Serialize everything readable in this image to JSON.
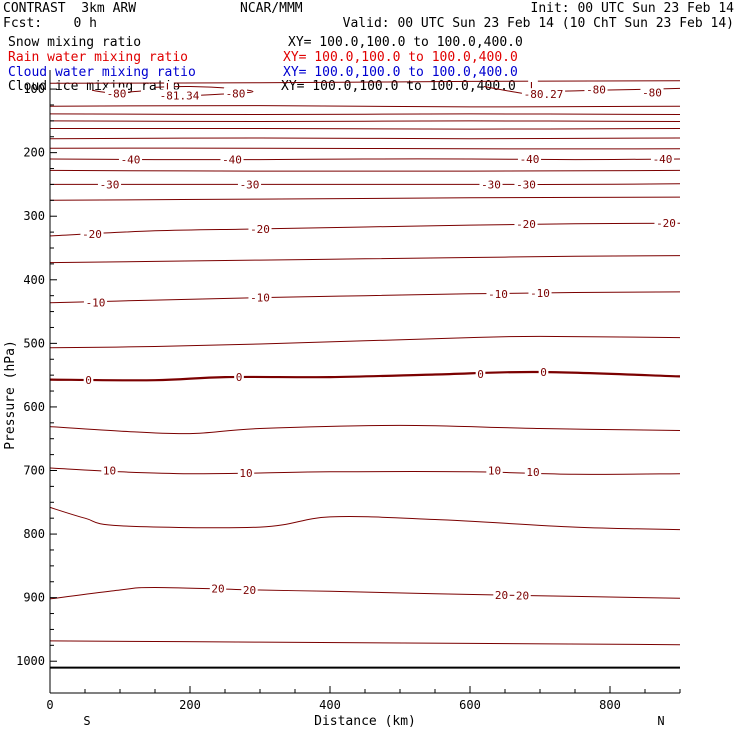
{
  "header": {
    "model": "CONTRAST  3km ARW",
    "center": "NCAR/MMM",
    "init": "Init: 00 UTC Sun 23 Feb 14",
    "fcst": "Fcst:    0 h",
    "valid": "Valid: 00 UTC Sun 23 Feb 14 (10 ChT Sun 23 Feb 14)",
    "fields": [
      {
        "name": "Snow mixing ratio",
        "xy": "XY= 100.0,100.0 to 100.0,400.0",
        "color": "#000000"
      },
      {
        "name": "Rain water mixing ratio",
        "xy": "XY= 100.0,100.0 to 100.0,400.0",
        "color": "#e00000"
      },
      {
        "name": "Cloud water mixing ratio",
        "xy": "XY= 100.0,100.0 to 100.0,400.0",
        "color": "#0000d0"
      },
      {
        "name": "Cloud ice mixing ratio",
        "xy": "XY= 100.0,100.0 to 100.0,400.0",
        "color": "#000000"
      }
    ]
  },
  "colors": {
    "contour": "#7b0000",
    "axes": "#000000"
  },
  "chart_data": {
    "type": "line",
    "xlabel": "Distance (km)",
    "ylabel": "Pressure (hPa)",
    "xlim": [
      0,
      900
    ],
    "ylim": [
      1050,
      70
    ],
    "x_ticks": [
      0,
      200,
      400,
      600,
      800
    ],
    "y_ticks": [
      100,
      200,
      300,
      400,
      500,
      600,
      700,
      800,
      900,
      1000
    ],
    "x_end_labels": {
      "left": "S",
      "right": "N"
    },
    "surface_pressure": 1010,
    "contours": [
      {
        "value": -80,
        "points": [
          [
            60,
            102
          ],
          [
            90,
            106
          ],
          [
            130,
            103
          ]
        ]
      },
      {
        "value": -80,
        "points": [
          [
            150,
            97
          ],
          [
            200,
            96
          ],
          [
            260,
            99
          ],
          [
            290,
            104
          ],
          [
            260,
            107
          ],
          [
            210,
            110
          ]
        ]
      },
      {
        "value": -80,
        "points": [
          [
            620,
            96
          ],
          [
            660,
            104
          ],
          [
            700,
            111
          ]
        ]
      },
      {
        "value": -80,
        "points": [
          [
            700,
            104
          ],
          [
            780,
            102
          ],
          [
            860,
            100
          ],
          [
            900,
            99
          ]
        ]
      },
      {
        "value": null,
        "points": [
          [
            0,
            91
          ],
          [
            300,
            90
          ],
          [
            600,
            88
          ],
          [
            900,
            87
          ]
        ]
      },
      {
        "value": null,
        "points": [
          [
            0,
            127
          ],
          [
            300,
            126
          ],
          [
            600,
            128
          ],
          [
            900,
            127
          ]
        ]
      },
      {
        "value": null,
        "points": [
          [
            0,
            139
          ],
          [
            300,
            140
          ],
          [
            600,
            139
          ],
          [
            900,
            140
          ]
        ]
      },
      {
        "value": null,
        "points": [
          [
            0,
            150
          ],
          [
            300,
            151
          ],
          [
            600,
            150
          ],
          [
            900,
            151
          ]
        ]
      },
      {
        "value": null,
        "points": [
          [
            0,
            162
          ],
          [
            300,
            162
          ],
          [
            600,
            163
          ],
          [
            900,
            162
          ]
        ]
      },
      {
        "value": null,
        "points": [
          [
            0,
            178
          ],
          [
            300,
            177
          ],
          [
            600,
            178
          ],
          [
            900,
            177
          ]
        ]
      },
      {
        "value": null,
        "points": [
          [
            0,
            193
          ],
          [
            300,
            193
          ],
          [
            600,
            194
          ],
          [
            900,
            194
          ]
        ]
      },
      {
        "value": -40,
        "points": [
          [
            0,
            210
          ],
          [
            150,
            211
          ],
          [
            300,
            211
          ],
          [
            450,
            210
          ],
          [
            600,
            210
          ],
          [
            750,
            211
          ],
          [
            900,
            210
          ]
        ]
      },
      {
        "value": null,
        "points": [
          [
            0,
            228
          ],
          [
            300,
            229
          ],
          [
            600,
            229
          ],
          [
            900,
            228
          ]
        ]
      },
      {
        "value": -30,
        "points": [
          [
            0,
            250
          ],
          [
            150,
            250
          ],
          [
            300,
            250
          ],
          [
            450,
            250
          ],
          [
            600,
            250
          ],
          [
            750,
            250
          ],
          [
            900,
            249
          ]
        ]
      },
      {
        "value": null,
        "points": [
          [
            0,
            275
          ],
          [
            300,
            273
          ],
          [
            600,
            271
          ],
          [
            900,
            270
          ]
        ]
      },
      {
        "value": -20,
        "points": [
          [
            0,
            331
          ],
          [
            150,
            323
          ],
          [
            300,
            320
          ],
          [
            450,
            317
          ],
          [
            600,
            314
          ],
          [
            750,
            312
          ],
          [
            900,
            311
          ]
        ]
      },
      {
        "value": null,
        "points": [
          [
            0,
            373
          ],
          [
            150,
            371
          ],
          [
            300,
            369
          ],
          [
            450,
            367
          ],
          [
            600,
            365
          ],
          [
            750,
            363
          ],
          [
            900,
            362
          ]
        ]
      },
      {
        "value": -10,
        "points": [
          [
            0,
            436
          ],
          [
            150,
            432
          ],
          [
            300,
            428
          ],
          [
            450,
            425
          ],
          [
            600,
            422
          ],
          [
            750,
            420
          ],
          [
            900,
            419
          ]
        ]
      },
      {
        "value": null,
        "points": [
          [
            0,
            507
          ],
          [
            150,
            505
          ],
          [
            300,
            501
          ],
          [
            450,
            496
          ],
          [
            600,
            491
          ],
          [
            700,
            489
          ],
          [
            900,
            491
          ]
        ]
      },
      {
        "value": 0,
        "bold": true,
        "points": [
          [
            0,
            557
          ],
          [
            150,
            558
          ],
          [
            250,
            553
          ],
          [
            400,
            553
          ],
          [
            550,
            549
          ],
          [
            700,
            545
          ],
          [
            900,
            552
          ]
        ]
      },
      {
        "value": null,
        "points": [
          [
            0,
            631
          ],
          [
            100,
            638
          ],
          [
            200,
            642
          ],
          [
            300,
            634
          ],
          [
            500,
            629
          ],
          [
            700,
            634
          ],
          [
            900,
            637
          ]
        ]
      },
      {
        "value": 10,
        "points": [
          [
            0,
            696
          ],
          [
            100,
            702
          ],
          [
            200,
            705
          ],
          [
            300,
            704
          ],
          [
            400,
            702
          ],
          [
            600,
            702
          ],
          [
            750,
            706
          ],
          [
            900,
            705
          ]
        ]
      },
      {
        "value": null,
        "points": [
          [
            0,
            758
          ],
          [
            50,
            775
          ],
          [
            100,
            787
          ],
          [
            300,
            789
          ],
          [
            400,
            773
          ],
          [
            550,
            777
          ],
          [
            750,
            789
          ],
          [
            900,
            793
          ]
        ]
      },
      {
        "value": 20,
        "points": [
          [
            0,
            902
          ],
          [
            100,
            888
          ],
          [
            150,
            884
          ],
          [
            300,
            888
          ],
          [
            400,
            890
          ],
          [
            550,
            894
          ],
          [
            750,
            898
          ],
          [
            900,
            901
          ]
        ]
      },
      {
        "value": null,
        "points": [
          [
            0,
            968
          ],
          [
            300,
            970
          ],
          [
            600,
            972
          ],
          [
            900,
            974
          ]
        ]
      }
    ],
    "contour_labels": [
      {
        "text": "-80",
        "x": 95,
        "p": 107
      },
      {
        "text": "-80",
        "x": 265,
        "p": 107
      },
      {
        "text": "-80",
        "x": 780,
        "p": 101
      },
      {
        "text": "-80",
        "x": 860,
        "p": 105
      },
      {
        "text": "L",
        "x": 170,
        "p": 97
      },
      {
        "text": "-81.34",
        "x": 185,
        "p": 110
      },
      {
        "text": "L",
        "x": 690,
        "p": 95
      },
      {
        "text": "-80.27",
        "x": 705,
        "p": 108
      },
      {
        "text": "-40",
        "x": 115,
        "p": 211
      },
      {
        "text": "-40",
        "x": 260,
        "p": 211
      },
      {
        "text": "-40",
        "x": 685,
        "p": 210
      },
      {
        "text": "-40",
        "x": 875,
        "p": 210
      },
      {
        "text": "-30",
        "x": 85,
        "p": 250
      },
      {
        "text": "-30",
        "x": 285,
        "p": 250
      },
      {
        "text": "-30",
        "x": 630,
        "p": 250
      },
      {
        "text": "-30",
        "x": 680,
        "p": 250
      },
      {
        "text": "-20",
        "x": 60,
        "p": 328
      },
      {
        "text": "-20",
        "x": 300,
        "p": 320
      },
      {
        "text": "-20",
        "x": 680,
        "p": 312
      },
      {
        "text": "-20",
        "x": 880,
        "p": 311
      },
      {
        "text": "-10",
        "x": 65,
        "p": 436
      },
      {
        "text": "-10",
        "x": 300,
        "p": 428
      },
      {
        "text": "-10",
        "x": 640,
        "p": 422
      },
      {
        "text": "-10",
        "x": 700,
        "p": 421
      },
      {
        "text": "0",
        "x": 55,
        "p": 558
      },
      {
        "text": "0",
        "x": 270,
        "p": 553
      },
      {
        "text": "0",
        "x": 615,
        "p": 548
      },
      {
        "text": "0",
        "x": 705,
        "p": 545
      },
      {
        "text": "10",
        "x": 85,
        "p": 700
      },
      {
        "text": "10",
        "x": 280,
        "p": 704
      },
      {
        "text": "10",
        "x": 635,
        "p": 700
      },
      {
        "text": "10",
        "x": 690,
        "p": 702
      },
      {
        "text": "20",
        "x": 240,
        "p": 886
      },
      {
        "text": "20",
        "x": 285,
        "p": 888
      },
      {
        "text": "20",
        "x": 645,
        "p": 896
      },
      {
        "text": "20",
        "x": 675,
        "p": 897
      }
    ]
  }
}
